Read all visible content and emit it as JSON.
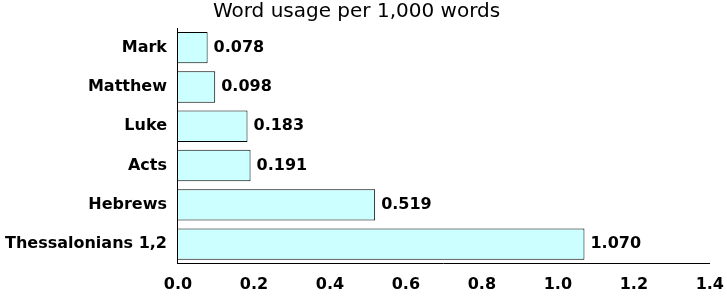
{
  "chart_data": {
    "type": "bar",
    "orientation": "horizontal",
    "title": "Word usage per 1,000 words",
    "categories": [
      "Mark",
      "Matthew",
      "Luke",
      "Acts",
      "Hebrews",
      "Thessalonians 1,2"
    ],
    "values": [
      0.078,
      0.098,
      0.183,
      0.191,
      0.519,
      1.07
    ],
    "value_labels": [
      "0.078",
      "0.098",
      "0.183",
      "0.191",
      "0.519",
      "1.070"
    ],
    "data_labels": true,
    "color": "#ccffff",
    "xlim": [
      0,
      1.4
    ],
    "xticks": [
      {
        "value": 0,
        "label": "0.0"
      },
      0.2,
      0.4,
      0.6,
      0.8,
      {
        "value": 1,
        "label": "1.0"
      },
      1.2,
      1.4
    ],
    "grid": false
  }
}
